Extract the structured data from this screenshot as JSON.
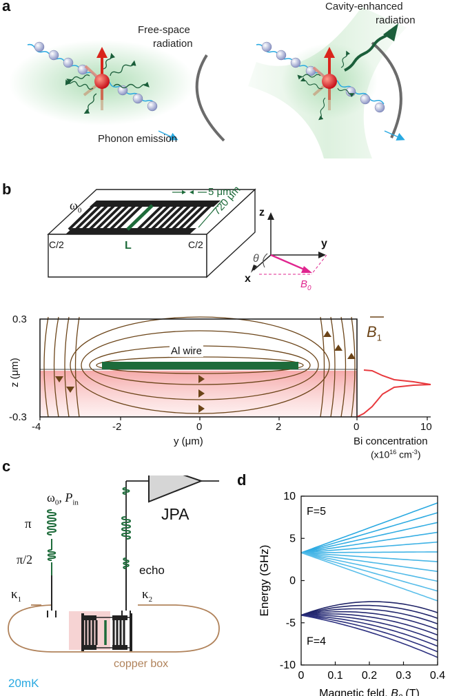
{
  "panel_labels": {
    "a": "a",
    "b": "b",
    "c": "c",
    "d": "d"
  },
  "panel_a": {
    "free_space_line1": "Free-space",
    "free_space_line2": "radiation",
    "phonon_emission": "Phonon emission",
    "cavity_line1": "Cavity-enhanced",
    "cavity_line2": "radiation"
  },
  "panel_b": {
    "omega_main": "ω",
    "omega_sub": "0",
    "width_label": "5 μm",
    "length_label": "720 μm",
    "c_half_left": "C/2",
    "c_half_right": "C/2",
    "inductor_label": "L",
    "axis_z": "z",
    "axis_y": "y",
    "axis_x": "x",
    "theta": "θ",
    "b0_main": "B",
    "b0_sub": "0",
    "b1_main": "B",
    "b1_sub": "1",
    "b1_arrow": "→",
    "wire_label": "Al wire",
    "ylabel": "z (μm)",
    "xlabel": "y (μm)",
    "y_ticks": [
      "0.3",
      "-0.3"
    ],
    "x_ticks": [
      "-4",
      "-2",
      "0",
      "2"
    ],
    "conc_ticks": [
      "0",
      "10"
    ],
    "conc_label_1": "Bi concentration",
    "conc_label_2": "(x10",
    "conc_label_exp": "16",
    "conc_label_3": " cm",
    "conc_label_exp2": "-3",
    "conc_label_4": ")"
  },
  "panel_c": {
    "omega_main": "ω",
    "omega_sub": "0",
    "pin_main": ", P",
    "pin_sub": "in",
    "pi": "π",
    "pi_half": "π/2",
    "echo": "echo",
    "kappa1_main": "κ",
    "kappa1_sub": "1",
    "kappa2_main": "κ",
    "kappa2_sub": "2",
    "jpa": "JPA",
    "copper_box": "copper box",
    "temperature": "20mK"
  },
  "chart_data": {
    "type": "line",
    "xlabel": "Magnetic feld, ",
    "xlabel_italic": "B",
    "xlabel_sub": "0",
    "xlabel_unit": " (T)",
    "ylabel": "Energy (GHz)",
    "xlim": [
      0,
      0.4
    ],
    "ylim": [
      -10,
      10
    ],
    "x_ticks": [
      "0",
      "0.1",
      "0.2",
      "0.3",
      "0.4"
    ],
    "y_ticks": [
      "10",
      "5",
      "0",
      "-5",
      "-10"
    ],
    "annotations": [
      "F=5",
      "F=4"
    ],
    "groups": [
      {
        "label": "F=5",
        "color": "#29a9e1",
        "start": 3.3,
        "n": 11
      },
      {
        "label": "F=4",
        "color": "#1f2367",
        "start": -4.1,
        "n": 9
      }
    ],
    "series": [
      {
        "group": "F=5",
        "x": [
          0,
          0.4
        ],
        "y": [
          3.3,
          9.2
        ]
      },
      {
        "group": "F=5",
        "x": [
          0,
          0.4
        ],
        "y": [
          3.3,
          -2.4
        ]
      },
      {
        "group": "F=4",
        "x": [
          0,
          0.2,
          0.4
        ],
        "y": [
          -4.1,
          -2.5,
          -3.8
        ]
      },
      {
        "group": "F=4",
        "x": [
          0,
          0.4
        ],
        "y": [
          -4.1,
          -9.1
        ]
      }
    ]
  }
}
